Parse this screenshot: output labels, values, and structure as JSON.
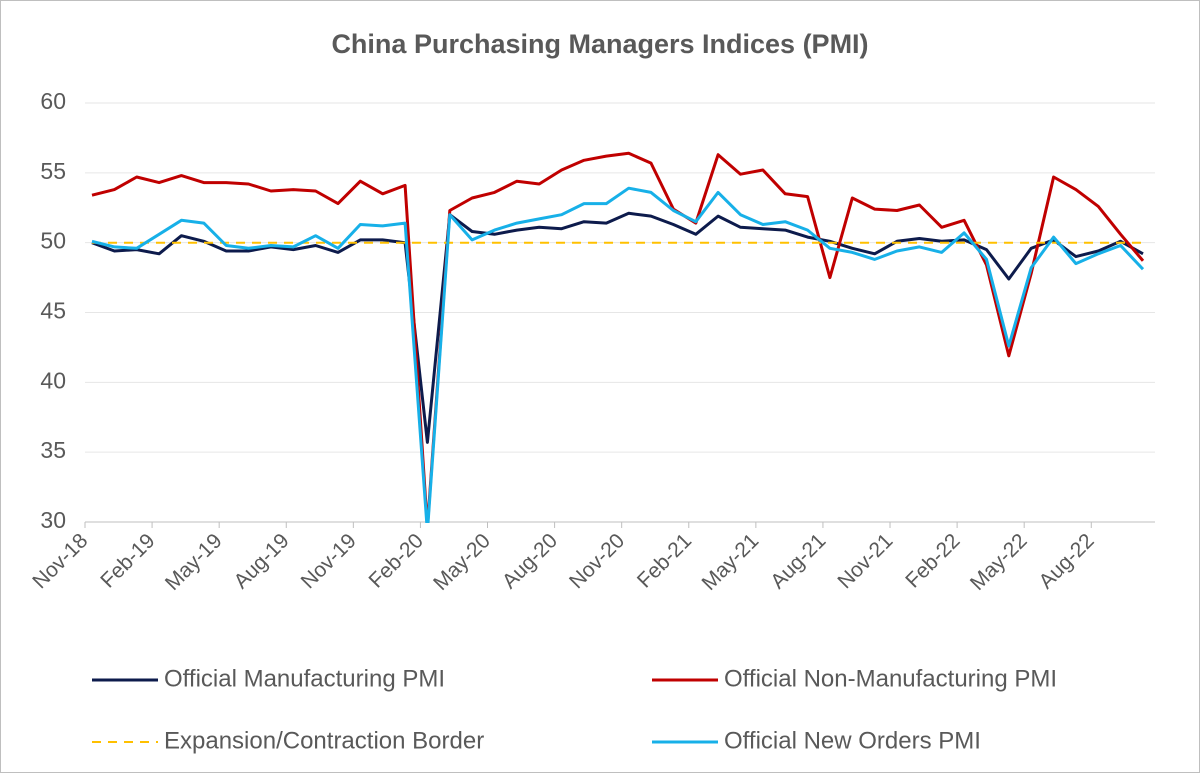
{
  "chart_data": {
    "type": "line",
    "title": "China Purchasing Managers Indices (PMI)",
    "categories": [
      "Nov-18",
      null,
      null,
      "Feb-19",
      null,
      null,
      "May-19",
      null,
      null,
      "Aug-19",
      null,
      null,
      "Nov-19",
      null,
      null,
      "Feb-20",
      null,
      null,
      "May-20",
      null,
      null,
      "Aug-20",
      null,
      null,
      "Nov-20",
      null,
      null,
      "Feb-21",
      null,
      null,
      "May-21",
      null,
      null,
      "Aug-21",
      null,
      null,
      "Nov-21",
      null,
      null,
      "Feb-22",
      null,
      null,
      "May-22",
      null,
      null,
      "Aug-22",
      null,
      null
    ],
    "series": [
      {
        "name": "Official Manufacturing PMI",
        "color": "#0d1b4c",
        "values": [
          50.0,
          49.4,
          49.5,
          49.2,
          50.5,
          50.1,
          49.4,
          49.4,
          49.7,
          49.5,
          49.8,
          49.3,
          50.2,
          50.2,
          50.0,
          35.7,
          52.0,
          50.8,
          50.6,
          50.9,
          51.1,
          51.0,
          51.5,
          51.4,
          52.1,
          51.9,
          51.3,
          50.6,
          51.9,
          51.1,
          51.0,
          50.9,
          50.4,
          50.1,
          49.6,
          49.2,
          50.1,
          50.3,
          50.1,
          50.2,
          49.5,
          47.4,
          49.6,
          50.2,
          49.0,
          49.4,
          50.1,
          49.2
        ]
      },
      {
        "name": "Official Non-Manufacturing PMI",
        "color": "#c00000",
        "values": [
          53.4,
          53.8,
          54.7,
          54.3,
          54.8,
          54.3,
          54.3,
          54.2,
          53.7,
          53.8,
          53.7,
          52.8,
          54.4,
          53.5,
          54.1,
          29.6,
          52.3,
          53.2,
          53.6,
          54.4,
          54.2,
          55.2,
          55.9,
          56.2,
          56.4,
          55.7,
          52.4,
          51.4,
          56.3,
          54.9,
          55.2,
          53.5,
          53.3,
          47.5,
          53.2,
          52.4,
          52.3,
          52.7,
          51.1,
          51.6,
          48.4,
          41.9,
          47.8,
          54.7,
          53.8,
          52.6,
          50.6,
          48.7
        ]
      },
      {
        "name": "Expansion/Contraction Border",
        "color": "#ffc000",
        "dashed": true,
        "values": [
          50,
          50,
          50,
          50,
          50,
          50,
          50,
          50,
          50,
          50,
          50,
          50,
          50,
          50,
          50,
          50,
          50,
          50,
          50,
          50,
          50,
          50,
          50,
          50,
          50,
          50,
          50,
          50,
          50,
          50,
          50,
          50,
          50,
          50,
          50,
          50,
          50,
          50,
          50,
          50,
          50,
          50,
          50,
          50,
          50,
          50,
          50,
          50
        ]
      },
      {
        "name": "Official New Orders PMI",
        "color": "#17b0e8",
        "values": [
          50.1,
          49.7,
          49.6,
          50.6,
          51.6,
          51.4,
          49.8,
          49.6,
          49.8,
          49.7,
          50.5,
          49.6,
          51.3,
          51.2,
          51.4,
          29.3,
          52.0,
          50.2,
          50.9,
          51.4,
          51.7,
          52.0,
          52.8,
          52.8,
          53.9,
          53.6,
          52.3,
          51.5,
          53.6,
          52.0,
          51.3,
          51.5,
          50.9,
          49.6,
          49.3,
          48.8,
          49.4,
          49.7,
          49.3,
          50.7,
          48.8,
          42.6,
          48.2,
          50.4,
          48.5,
          49.2,
          49.8,
          48.1
        ]
      }
    ],
    "ylim": [
      30,
      60
    ],
    "yticks": [
      30,
      35,
      40,
      45,
      50,
      55,
      60
    ],
    "grid": true
  }
}
